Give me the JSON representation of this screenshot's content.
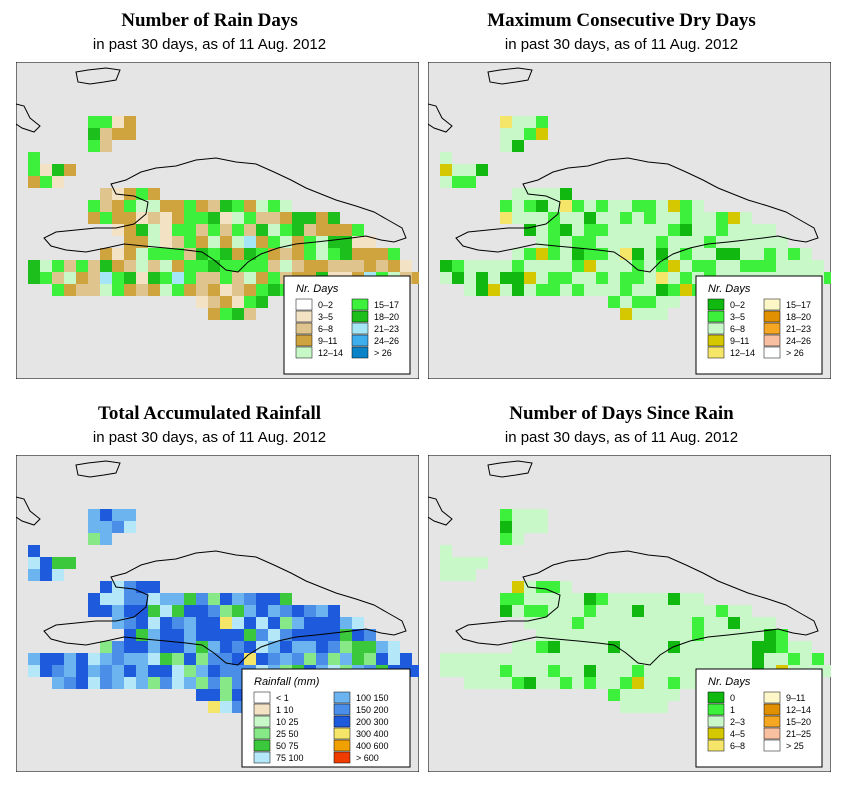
{
  "panels": [
    {
      "id": "rain-days",
      "title": "Number of Rain Days",
      "subtitle": "in past 30 days, as of  11 Aug. 2012",
      "legend": {
        "title": "Nr. Days",
        "items": [
          {
            "label": "0–2",
            "color": "#ffffff"
          },
          {
            "label": "3–5",
            "color": "#f3e2c4"
          },
          {
            "label": "6–8",
            "color": "#e0c48e"
          },
          {
            "label": "9–11",
            "color": "#cfa43e"
          },
          {
            "label": "12–14",
            "color": "#c8f7c8"
          },
          {
            "label": "15–17",
            "color": "#3cf03c"
          },
          {
            "label": "18–20",
            "color": "#1dbf1d"
          },
          {
            "label": "21–23",
            "color": "#a4e6f5"
          },
          {
            "label": "24–26",
            "color": "#3eaeee"
          },
          {
            "label": "> 26",
            "color": "#0a82c8"
          }
        ]
      }
    },
    {
      "id": "dry-days",
      "title": "Maximum Consecutive Dry Days",
      "subtitle": "in past 30 days, as of  11 Aug. 2012",
      "legend": {
        "title": "Nr. Days",
        "items": [
          {
            "label": "0–2",
            "color": "#10b810"
          },
          {
            "label": "3–5",
            "color": "#3cf03c"
          },
          {
            "label": "6–8",
            "color": "#c8f7c8"
          },
          {
            "label": "9–11",
            "color": "#d6c800"
          },
          {
            "label": "12–14",
            "color": "#f5e66a"
          },
          {
            "label": "15–17",
            "color": "#fdf7c8"
          },
          {
            "label": "18–20",
            "color": "#e09000"
          },
          {
            "label": "21–23",
            "color": "#f5a623"
          },
          {
            "label": "24–26",
            "color": "#f8c0a0"
          },
          {
            "label": "> 26",
            "color": "#ffffff"
          }
        ]
      }
    },
    {
      "id": "rainfall",
      "title": "Total Accumulated Rainfall",
      "subtitle": "in past 30 days, as of  11 Aug. 2012",
      "legend": {
        "title": "Rainfall (mm)",
        "items": [
          {
            "label": "< 1",
            "color": "#ffffff"
          },
          {
            "label": "1   10",
            "color": "#f3e2c4"
          },
          {
            "label": "10   25",
            "color": "#c8f7c8"
          },
          {
            "label": "25   50",
            "color": "#86e886"
          },
          {
            "label": "50   75",
            "color": "#3cc83c"
          },
          {
            "label": "75  100",
            "color": "#b4e8f8"
          },
          {
            "label": "100  150",
            "color": "#6cb4f0"
          },
          {
            "label": "150  200",
            "color": "#4a8ee8"
          },
          {
            "label": "200  300",
            "color": "#1e5adc"
          },
          {
            "label": "300  400",
            "color": "#f5e66a"
          },
          {
            "label": "400  600",
            "color": "#f0a000"
          },
          {
            "label": "> 600",
            "color": "#f03c00"
          }
        ]
      }
    },
    {
      "id": "days-since-rain",
      "title": "Number of Days Since Rain",
      "subtitle": "in past 30 days, as of  11 Aug. 2012",
      "legend": {
        "title": "Nr. Days",
        "items": [
          {
            "label": "0",
            "color": "#10b810"
          },
          {
            "label": "1",
            "color": "#3cf03c"
          },
          {
            "label": "2–3",
            "color": "#c8f7c8"
          },
          {
            "label": "4–5",
            "color": "#d6c800"
          },
          {
            "label": "6–8",
            "color": "#f5e66a"
          },
          {
            "label": "9–11",
            "color": "#fdf7c8"
          },
          {
            "label": "12–14",
            "color": "#e09000"
          },
          {
            "label": "15–20",
            "color": "#f5a623"
          },
          {
            "label": "21–25",
            "color": "#f8c0a0"
          },
          {
            "label": "> 25",
            "color": "#ffffff"
          }
        ]
      }
    }
  ],
  "colors": {
    "background": "#e5e5e5",
    "border": "#000000"
  }
}
